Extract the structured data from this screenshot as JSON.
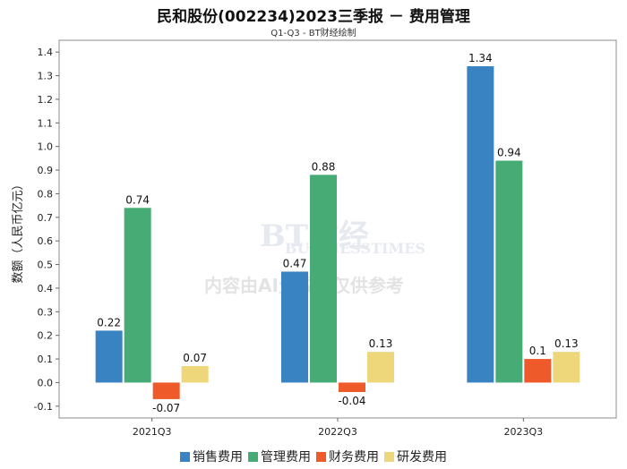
{
  "chart_data": {
    "type": "bar",
    "title": "民和股份(002234)2023三季报 － 费用管理",
    "subtitle": "Q1-Q3 - BT财经绘制",
    "ylabel": "数额（人民币亿元）",
    "xlabel": "",
    "categories": [
      "2021Q3",
      "2022Q3",
      "2023Q3"
    ],
    "ylim": [
      -0.15,
      1.45
    ],
    "yticks": [
      "-0.1",
      "0.0",
      "0.1",
      "0.2",
      "0.3",
      "0.4",
      "0.5",
      "0.6",
      "0.7",
      "0.8",
      "0.9",
      "1.0",
      "1.1",
      "1.2",
      "1.3",
      "1.4"
    ],
    "series": [
      {
        "name": "销售费用",
        "color": "#3a83c3",
        "values": [
          0.22,
          0.47,
          1.34
        ],
        "labels": [
          "0.22",
          "0.47",
          "1.34"
        ]
      },
      {
        "name": "管理费用",
        "color": "#46ab74",
        "values": [
          0.74,
          0.88,
          0.94
        ],
        "labels": [
          "0.74",
          "0.88",
          "0.94"
        ]
      },
      {
        "name": "财务费用",
        "color": "#ee5a2a",
        "values": [
          -0.07,
          -0.04,
          0.1
        ],
        "labels": [
          "-0.07",
          "-0.04",
          "0.1"
        ]
      },
      {
        "name": "研发费用",
        "color": "#eed67a",
        "values": [
          0.07,
          0.13,
          0.13
        ],
        "labels": [
          "0.07",
          "0.13",
          "0.13"
        ]
      }
    ],
    "legend": "bottom",
    "grid": false
  },
  "watermark": {
    "logo_text": "BT财经",
    "logo_sub": "BUSINESSTIMES",
    "notice": "内容由AI生成，仅供参考"
  }
}
